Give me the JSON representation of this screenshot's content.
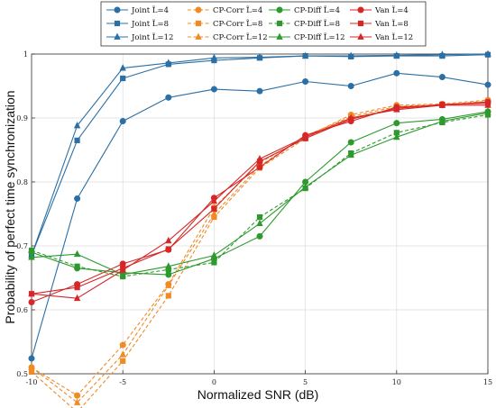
{
  "chart_data": {
    "type": "line",
    "title": "",
    "xlabel": "Normalized SNR (dB)",
    "ylabel": "Probability of perfect time synchronization",
    "xlim": [
      -10,
      15
    ],
    "ylim": [
      0.5,
      1
    ],
    "xticks": [
      -10,
      -5,
      0,
      5,
      10,
      15
    ],
    "yticks": [
      0.5,
      0.6,
      0.7,
      0.8,
      0.9,
      1
    ],
    "ytick_labels": [
      "0.5",
      "0.6",
      "0.7",
      "0.8",
      "0.9",
      "1"
    ],
    "grid": true,
    "legend_position": "top",
    "x": [
      -10,
      -7.5,
      -5,
      -2.5,
      0,
      2.5,
      5,
      7.5,
      10,
      12.5,
      15
    ],
    "series": [
      {
        "name": "Joint L̃=4",
        "color": "#2a6fa5",
        "dash": "solid",
        "marker": "circle",
        "values": [
          0.524,
          0.774,
          0.895,
          0.932,
          0.945,
          0.942,
          0.957,
          0.95,
          0.97,
          0.964,
          0.952
        ]
      },
      {
        "name": "Joint L̃=8",
        "color": "#2a6fa5",
        "dash": "solid",
        "marker": "square",
        "values": [
          0.685,
          0.865,
          0.962,
          0.984,
          0.99,
          0.994,
          0.997,
          0.996,
          0.997,
          0.997,
          0.999
        ]
      },
      {
        "name": "Joint L̃=12",
        "color": "#2a6fa5",
        "dash": "solid",
        "marker": "triangle",
        "values": [
          0.685,
          0.888,
          0.978,
          0.986,
          0.994,
          0.995,
          0.997,
          0.997,
          0.998,
          0.999,
          1.0
        ]
      },
      {
        "name": "CP-Corr L̃=4",
        "color": "#f08a24",
        "dash": "dashed",
        "marker": "circle",
        "values": [
          0.51,
          0.466,
          0.545,
          0.64,
          0.76,
          0.83,
          0.87,
          0.905,
          0.92,
          0.922,
          0.928
        ]
      },
      {
        "name": "CP-Corr L̃=8",
        "color": "#f08a24",
        "dash": "dashed",
        "marker": "square",
        "values": [
          0.503,
          0.44,
          0.52,
          0.622,
          0.745,
          0.822,
          0.868,
          0.9,
          0.915,
          0.92,
          0.925
        ]
      },
      {
        "name": "CP-Corr L̃=12",
        "color": "#f08a24",
        "dash": "dashed",
        "marker": "triangle",
        "values": [
          0.51,
          0.455,
          0.53,
          0.638,
          0.75,
          0.825,
          0.872,
          0.902,
          0.918,
          0.921,
          0.926
        ]
      },
      {
        "name": "CP-Diff L̃=4",
        "color": "#2e9a2e",
        "dash": "solid",
        "marker": "circle",
        "values": [
          0.69,
          0.665,
          0.658,
          0.655,
          0.68,
          0.715,
          0.8,
          0.862,
          0.892,
          0.898,
          0.91
        ]
      },
      {
        "name": "CP-Diff L̃=8",
        "color": "#2e9a2e",
        "dash": "dashed",
        "marker": "square",
        "values": [
          0.693,
          0.668,
          0.652,
          0.663,
          0.674,
          0.745,
          0.79,
          0.845,
          0.877,
          0.893,
          0.905
        ]
      },
      {
        "name": "CP-Diff L̃=12",
        "color": "#2e9a2e",
        "dash": "solid",
        "marker": "triangle",
        "values": [
          0.682,
          0.687,
          0.655,
          0.668,
          0.685,
          0.735,
          0.792,
          0.842,
          0.87,
          0.895,
          0.908
        ]
      },
      {
        "name": "Van L̃=4",
        "color": "#d62728",
        "dash": "solid",
        "marker": "circle",
        "values": [
          0.612,
          0.64,
          0.672,
          0.694,
          0.775,
          0.823,
          0.873,
          0.895,
          0.917,
          0.92,
          0.925
        ]
      },
      {
        "name": "Van L̃=8",
        "color": "#d62728",
        "dash": "solid",
        "marker": "square",
        "values": [
          0.625,
          0.635,
          0.665,
          0.695,
          0.758,
          0.832,
          0.868,
          0.898,
          0.915,
          0.921,
          0.923
        ]
      },
      {
        "name": "Van L̃=12",
        "color": "#d62728",
        "dash": "solid",
        "marker": "triangle",
        "values": [
          0.625,
          0.618,
          0.662,
          0.708,
          0.77,
          0.836,
          0.87,
          0.9,
          0.913,
          0.92,
          0.92
        ]
      }
    ]
  }
}
